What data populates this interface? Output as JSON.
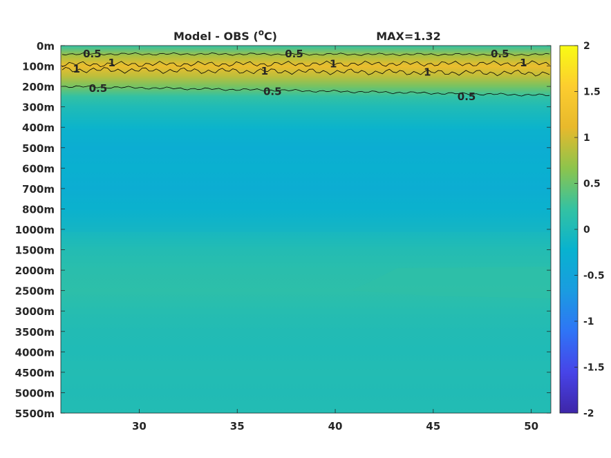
{
  "chart_data": {
    "type": "heatmap",
    "title": "Model - OBS (°C)",
    "title_main": "Model - OBS (",
    "title_sup": "o",
    "title_tail": "C)",
    "max_label": "MAX=1.32",
    "x_ticks": [
      "30",
      "35",
      "40",
      "45",
      "50"
    ],
    "x_tick_values": [
      30,
      35,
      40,
      45,
      50
    ],
    "xlim": [
      26,
      51
    ],
    "y_ticks": [
      "0m",
      "100m",
      "200m",
      "300m",
      "400m",
      "500m",
      "600m",
      "700m",
      "800m",
      "1000m",
      "1500m",
      "2000m",
      "2500m",
      "3000m",
      "3500m",
      "4000m",
      "4500m",
      "5000m",
      "5500m"
    ],
    "colorbar": {
      "ticks": [
        "2",
        "1.5",
        "1",
        "0.5",
        "0",
        "-0.5",
        "-1",
        "-1.5",
        "-2"
      ],
      "tick_values": [
        2,
        1.5,
        1,
        0.5,
        0,
        -0.5,
        -1,
        -1.5,
        -2
      ],
      "range": [
        -2,
        2
      ],
      "colormap": "parula",
      "stops": [
        "#3e26a8",
        "#4744e8",
        "#2f74f6",
        "#1a9ce0",
        "#08b2cf",
        "#34c2a2",
        "#8dc44c",
        "#e8b92c",
        "#fccd2f",
        "#f9fb14"
      ]
    },
    "profile": {
      "depths": [
        "0m",
        "50m",
        "100m",
        "150m",
        "200m",
        "250m",
        "300m",
        "400m",
        "500m",
        "600m",
        "700m",
        "800m",
        "1000m",
        "1500m",
        "2000m",
        "2500m",
        "3000m",
        "3500m",
        "4000m",
        "4500m",
        "5000m",
        "5500m"
      ],
      "values": [
        0.2,
        0.8,
        1.2,
        0.9,
        0.55,
        0.2,
        0.02,
        -0.18,
        -0.3,
        -0.25,
        -0.3,
        -0.2,
        -0.08,
        0.05,
        0.12,
        0.15,
        0.08,
        0.04,
        0.02,
        0.05,
        0.03,
        0.05
      ]
    },
    "contour_labels": [
      {
        "text": "0.5",
        "x": 27.6,
        "depth": "40m"
      },
      {
        "text": "1",
        "x": 26.8,
        "depth": "115m"
      },
      {
        "text": "1",
        "x": 28.6,
        "depth": "85m"
      },
      {
        "text": "0.5",
        "x": 37.9,
        "depth": "40m"
      },
      {
        "text": "1",
        "x": 39.9,
        "depth": "90m"
      },
      {
        "text": "1",
        "x": 36.4,
        "depth": "125m"
      },
      {
        "text": "0.5",
        "x": 48.4,
        "depth": "40m"
      },
      {
        "text": "1",
        "x": 49.6,
        "depth": "85m"
      },
      {
        "text": "1",
        "x": 44.7,
        "depth": "130m"
      },
      {
        "text": "0.5",
        "x": 27.9,
        "depth": "210m"
      },
      {
        "text": "0.5",
        "x": 36.8,
        "depth": "225m"
      },
      {
        "text": "0.5",
        "x": 46.7,
        "depth": "250m"
      }
    ]
  }
}
